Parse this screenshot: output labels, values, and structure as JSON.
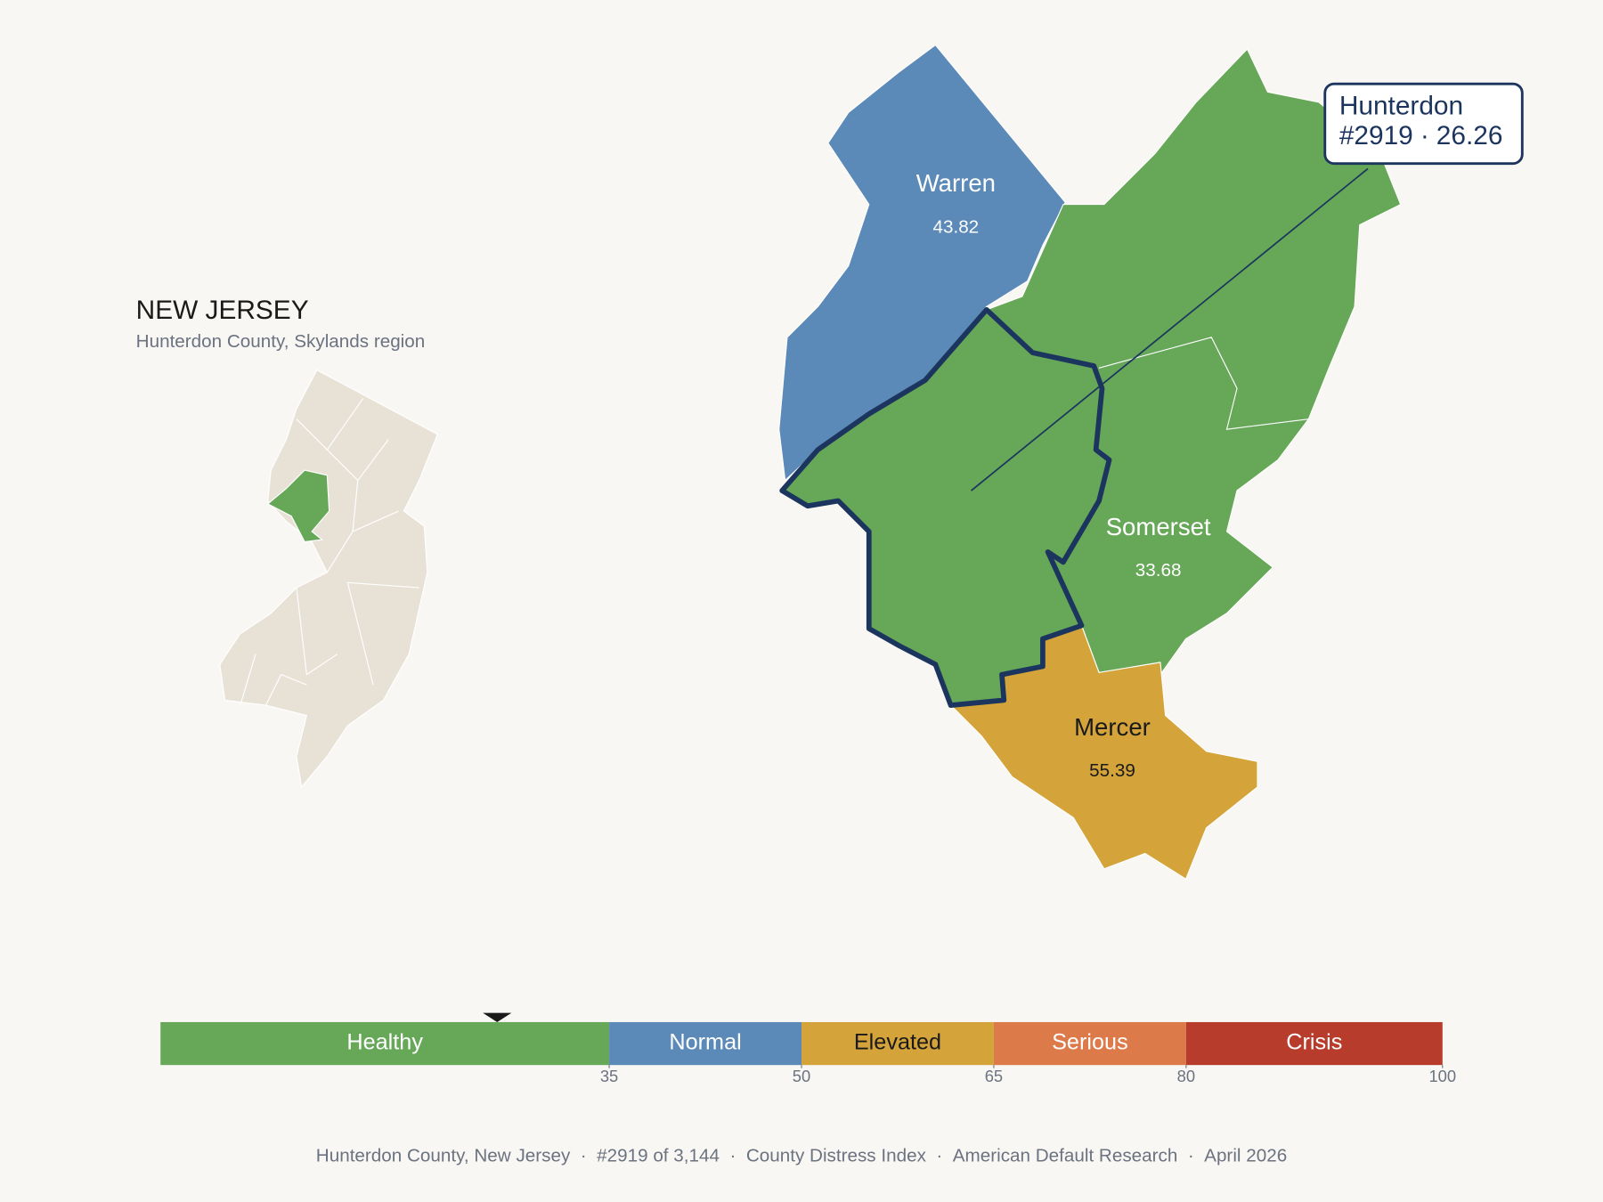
{
  "header": {
    "title": "NEW JERSEY",
    "subtitle": "Hunterdon County, Skylands region"
  },
  "counties": [
    {
      "name": "Hunterdon",
      "value": 26.26,
      "rank": "#2919"
    },
    {
      "name": "Warren",
      "value": 43.82
    },
    {
      "name": "Somerset",
      "value": 33.68
    },
    {
      "name": "Mercer",
      "value": 55.39
    }
  ],
  "callout": {
    "separator": "·"
  },
  "scale": {
    "lim": [
      0,
      100
    ],
    "ticks": [
      35,
      50,
      65,
      80,
      100
    ],
    "bands": [
      {
        "label": "Healthy",
        "color": "#66a758",
        "text_color": "#ffffff"
      },
      {
        "label": "Normal",
        "color": "#5b8ab9",
        "text_color": "#ffffff"
      },
      {
        "label": "Elevated",
        "color": "#d4a33a",
        "text_color": "#1a1a1a"
      },
      {
        "label": "Serious",
        "color": "#dc7a4a",
        "text_color": "#ffffff"
      },
      {
        "label": "Crisis",
        "color": "#b83c2b",
        "text_color": "#ffffff"
      }
    ]
  },
  "footer": {
    "separator": "·",
    "items": [
      "Hunterdon County, New Jersey",
      "#2919 of 3,144",
      "County Distress Index",
      "American Default Research",
      "April 2026"
    ]
  }
}
